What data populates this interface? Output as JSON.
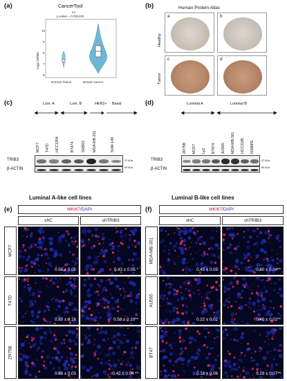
{
  "panels": {
    "a": {
      "label": "(a)",
      "title": "CancerTool",
      "stat_lines": [
        "Lu",
        "p-value = 0.001282"
      ],
      "ylabel": "Log2 mRNA",
      "yticks": [
        "10",
        "9",
        "8",
        "7",
        "6"
      ],
      "categories": [
        "Normal Tissue",
        "Breast Cancer"
      ],
      "violin_color": "#6fb7d6"
    },
    "b": {
      "label": "(b)",
      "title": "Human Protein Atlas",
      "rows": [
        "Healthy",
        "Tumor"
      ],
      "tiles": [
        "a",
        "b",
        "c",
        "d"
      ]
    },
    "c": {
      "label": "(c)",
      "groups": [
        "Lum. A",
        "Lum. B",
        "HER2+",
        "Basal"
      ],
      "lanes": [
        "MCF7",
        "T47D",
        "HCC1954",
        "BT474",
        "SKBR3",
        "MDA-MB-231",
        "SUM-149"
      ],
      "blots": [
        "TRIB3",
        "β-ACTIN"
      ],
      "kda": [
        "37 kDa",
        "50 kDa"
      ],
      "trib3_intensity": [
        0.45,
        0.35,
        0.55,
        0.6,
        0.95,
        0.4,
        0.3
      ]
    },
    "d": {
      "label": "(d)",
      "groups": [
        "Luminal A",
        "Luminal B"
      ],
      "lanes": [
        "ZR75B",
        "MCF7",
        "Ly2",
        "BT474",
        "AU565",
        "MDA-MB-361",
        "HCC2185",
        "600MPE"
      ],
      "blots": [
        "TRIB3",
        "β-ACTIN"
      ],
      "kda": [
        "37 kDa",
        "50 kDa"
      ],
      "trib3_intensity": [
        0.3,
        0.35,
        0.4,
        0.6,
        0.9,
        0.85,
        0.55,
        0.45
      ]
    },
    "e": {
      "label": "(e)",
      "title": "Luminal A-like cell lines",
      "stain": [
        "MKI67",
        "/DAPI"
      ],
      "conditions": [
        "shC",
        "shTRIB3"
      ],
      "cell_lines": [
        "MCF7",
        "T47D",
        "ZR75B"
      ],
      "values": [
        [
          "0.58 ± 0.05",
          "0.43 ± 0.05 *"
        ],
        [
          "0.80 ± 0.16",
          "0.58 ± 0.10**"
        ],
        [
          "0.66 ± 0.03",
          "0.42 ± 0.04 **"
        ]
      ]
    },
    "f": {
      "label": "(f)",
      "title": "Luminal B-like cell lines",
      "stain": [
        "MKI67",
        "/DAPI"
      ],
      "conditions": [
        "shC",
        "shTRIB3"
      ],
      "cell_lines": [
        "MDA-MB-361",
        "AU565",
        "BT47"
      ],
      "values": [
        [
          "0.45 ± 0.05",
          "0.60 ± 0.04**"
        ],
        [
          "0.22 ± 0.02",
          "0.40 ± 0.02**"
        ],
        [
          "0.16 ± 0.06",
          "0.29 ± 0.07**"
        ]
      ]
    }
  },
  "colors": {
    "mki67": "#c8102e",
    "dapi": "#1f2fbf",
    "micro_bg": "#05061f"
  }
}
